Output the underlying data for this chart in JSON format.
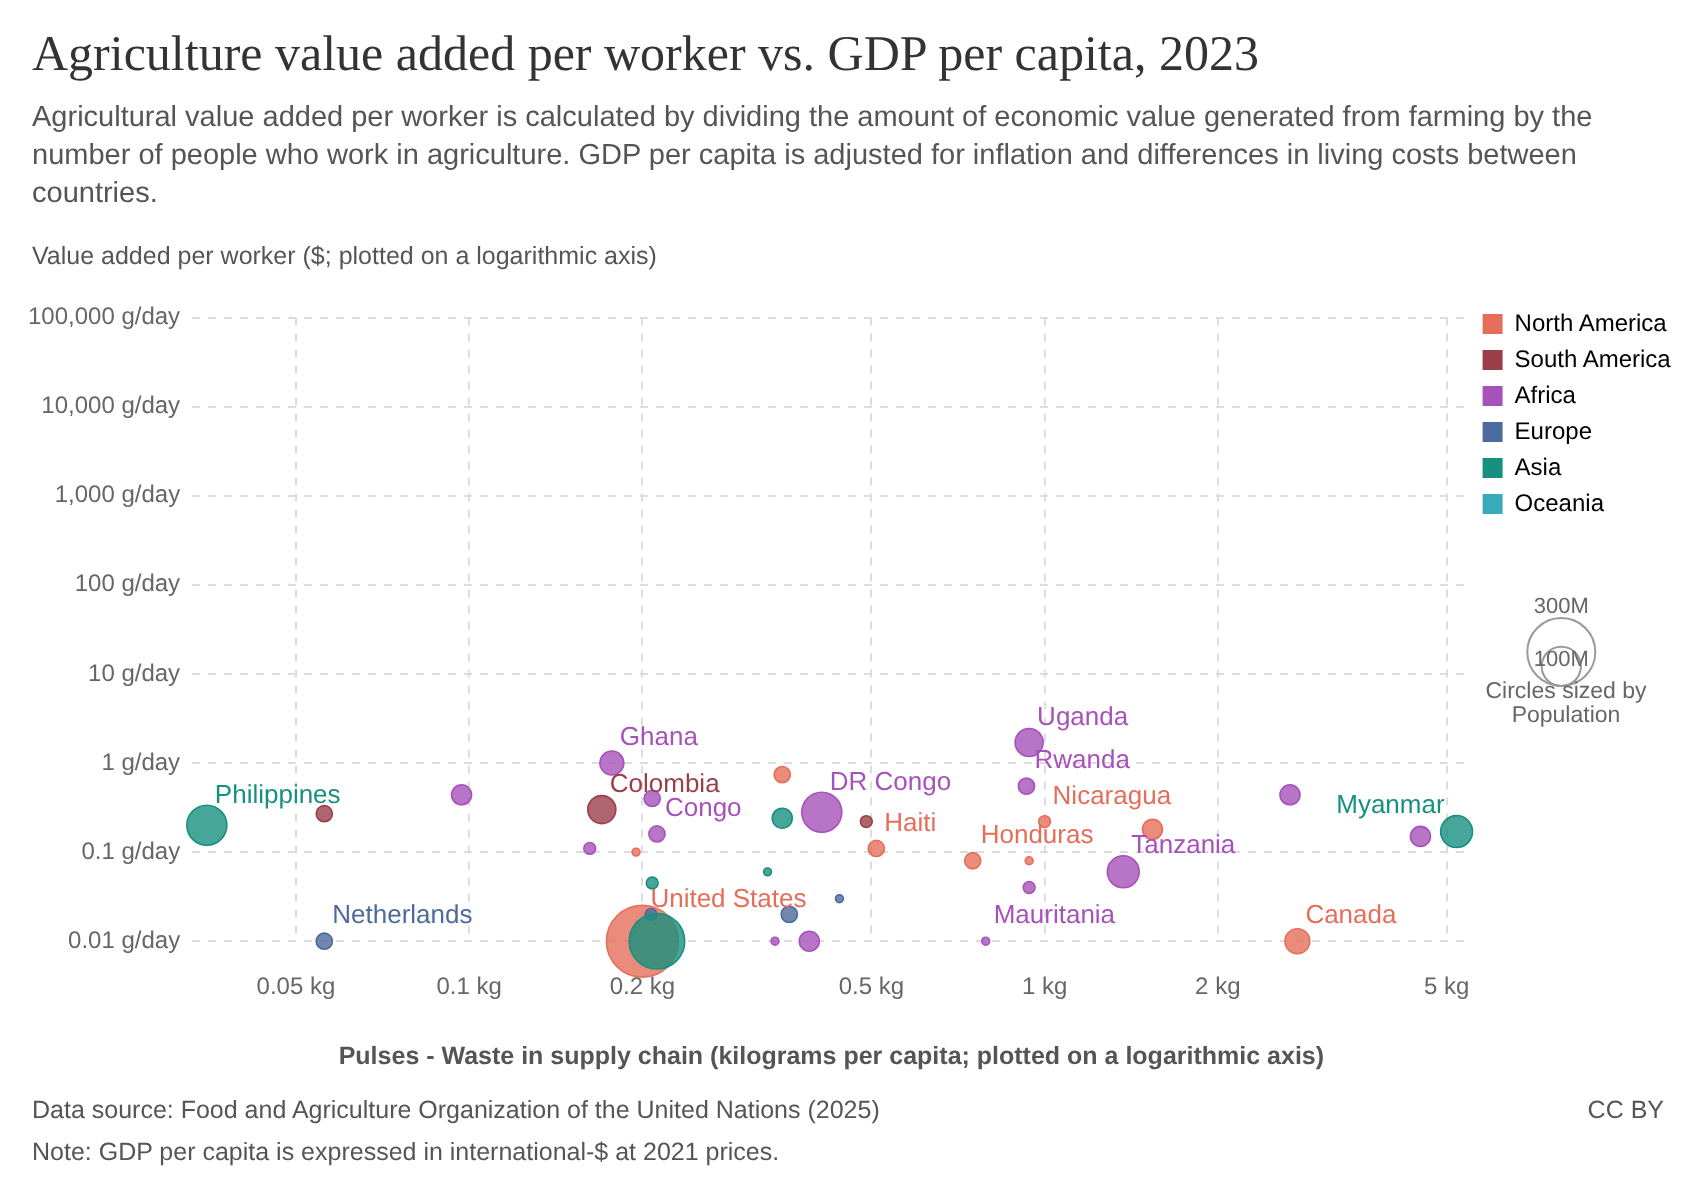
{
  "chart_data": {
    "type": "bubble",
    "title": "Agriculture value added per worker vs. GDP per capita, 2023",
    "subtitle": "Agricultural value added per worker is calculated by dividing the amount of economic value generated from farming by the number of people who work in agriculture. GDP per capita is adjusted for inflation and differences in living costs between countries.",
    "ylabel": "Value added per worker ($; plotted on a logarithmic axis)",
    "xlabel": "Pulses - Waste in supply chain (kilograms per capita; plotted on a logarithmic axis)",
    "legend_title": "Circles sized by Population",
    "log": "xy",
    "grid": true,
    "legend": "top right",
    "xlim": [
      0.033,
      5.5
    ],
    "xticks": [
      {
        "value": 0.05,
        "label": "0.05 kg"
      },
      {
        "value": 0.1,
        "label": "0.1 kg"
      },
      {
        "value": 0.2,
        "label": "0.2 kg"
      },
      {
        "value": 0.5,
        "label": "0.5 kg"
      },
      {
        "value": 1,
        "label": "1 kg"
      },
      {
        "value": 2,
        "label": "2 kg"
      },
      {
        "value": 5,
        "label": "5 kg"
      }
    ],
    "ylim": [
      0.01,
      100000
    ],
    "yticks": [
      {
        "value": 0.01,
        "label": "0.01 g/day"
      },
      {
        "value": 0.1,
        "label": "0.1 g/day"
      },
      {
        "value": 1,
        "label": "1 g/day"
      },
      {
        "value": 10,
        "label": "10 g/day"
      },
      {
        "value": 100,
        "label": "100 g/day"
      },
      {
        "value": 1000,
        "label": "1,000 g/day"
      },
      {
        "value": 10000,
        "label": "10,000 g/day"
      },
      {
        "value": 100000,
        "label": "100,000 g/day"
      }
    ],
    "size_legend": [
      {
        "value": 100,
        "label": "100M"
      },
      {
        "value": 300,
        "label": "300M"
      }
    ],
    "series": [
      {
        "name": "North America",
        "color": "#e56e5a",
        "x": [
          0.2,
          0.195,
          0.35,
          0.51,
          0.75,
          0.94,
          1.0,
          1.54,
          2.75
        ],
        "values": [
          0.01,
          0.1,
          0.74,
          0.11,
          0.08,
          0.08,
          0.22,
          0.18,
          0.01
        ],
        "sizes": [
          335,
          4,
          17,
          17,
          17,
          4,
          9,
          26,
          40
        ]
      },
      {
        "name": "South America",
        "color": "#9a3e4a",
        "x": [
          0.056,
          0.17,
          0.49
        ],
        "values": [
          0.27,
          0.3,
          0.22
        ],
        "sizes": [
          17,
          51,
          9
        ]
      },
      {
        "name": "Africa",
        "color": "#a652ba",
        "x": [
          0.097,
          0.177,
          0.208,
          0.162,
          0.212,
          0.41,
          0.34,
          0.39,
          0.79,
          0.94,
          0.93,
          0.94,
          1.37,
          2.67,
          4.5
        ],
        "values": [
          0.44,
          1.0,
          0.4,
          0.11,
          0.16,
          0.28,
          0.01,
          0.01,
          0.01,
          0.04,
          0.55,
          1.7,
          0.06,
          0.44,
          0.15
        ],
        "sizes": [
          26,
          37,
          17,
          9,
          17,
          104,
          4,
          26,
          4,
          9,
          17,
          51,
          66,
          26,
          26
        ]
      },
      {
        "name": "Europe",
        "color": "#4c6a9c",
        "x": [
          0.056,
          0.207,
          0.44,
          0.36
        ],
        "values": [
          0.01,
          0.02,
          0.03,
          0.02
        ],
        "sizes": [
          17,
          9,
          4,
          17
        ]
      },
      {
        "name": "Asia",
        "color": "#18907f",
        "x": [
          0.035,
          0.212,
          0.208,
          0.35,
          0.33,
          5.2
        ],
        "values": [
          0.2,
          0.01,
          0.045,
          0.24,
          0.06,
          0.17
        ],
        "sizes": [
          104,
          200,
          9,
          26,
          4,
          66
        ]
      },
      {
        "name": "Oceania",
        "color": "#38aaba"
      }
    ],
    "annotations": [
      {
        "text": "Philippines",
        "x": 0.035,
        "y": 0.2
      },
      {
        "text": "Ghana",
        "x": 0.177,
        "y": 1.0
      },
      {
        "text": "Colombia",
        "x": 0.17,
        "y": 0.3
      },
      {
        "text": "Congo",
        "x": 0.212,
        "y": 0.16
      },
      {
        "text": "United States",
        "x": 0.2,
        "y": 0.01
      },
      {
        "text": "Netherlands",
        "x": 0.056,
        "y": 0.01
      },
      {
        "text": "DR Congo",
        "x": 0.41,
        "y": 0.28
      },
      {
        "text": "Haiti",
        "x": 0.51,
        "y": 0.11
      },
      {
        "text": "Honduras",
        "x": 0.75,
        "y": 0.08
      },
      {
        "text": "Mauritania",
        "x": 0.79,
        "y": 0.01
      },
      {
        "text": "Rwanda",
        "x": 0.93,
        "y": 0.55
      },
      {
        "text": "Uganda",
        "x": 0.94,
        "y": 1.7
      },
      {
        "text": "Nicaragua",
        "x": 1.0,
        "y": 0.22
      },
      {
        "text": "Tanzania",
        "x": 1.37,
        "y": 0.06
      },
      {
        "text": "Canada",
        "x": 2.75,
        "y": 0.01
      },
      {
        "text": "Myanmar",
        "x": 5.2,
        "y": 0.17
      },
      "Data source: Food and Agriculture Organization of the United Nations (2025)",
      "CC BY",
      "Note: GDP per capita is expressed in international-$ at 2021 prices."
    ]
  }
}
